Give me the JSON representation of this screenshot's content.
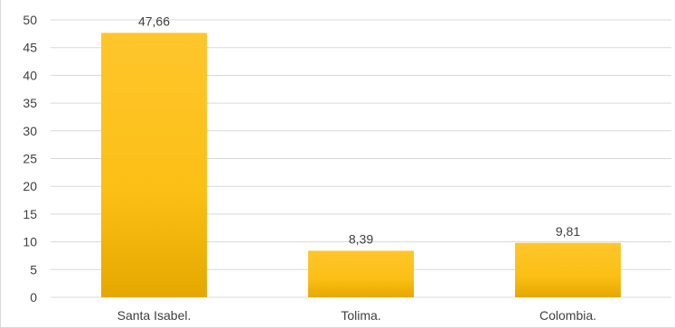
{
  "chart_data": {
    "type": "bar",
    "categories": [
      "Santa Isabel.",
      "Tolima.",
      "Colombia."
    ],
    "values": [
      47.66,
      8.39,
      9.81
    ],
    "data_labels": [
      "47,66",
      "8,39",
      "9,81"
    ],
    "ylim": [
      0,
      50
    ],
    "yticks": [
      0,
      5,
      10,
      15,
      20,
      25,
      30,
      35,
      40,
      45,
      50
    ],
    "grid": true,
    "bar_color_top": "#ffc62c",
    "bar_color_bottom": "#e5a800"
  }
}
